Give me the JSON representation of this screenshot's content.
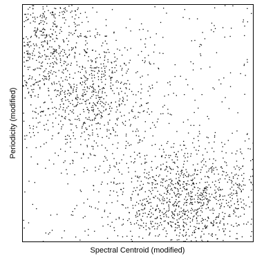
{
  "chart_data": {
    "type": "scatter",
    "title": "",
    "xlabel": "Spectral Centroid (modified)",
    "ylabel": "Periodicity (modified)",
    "xlim": [
      0,
      1
    ],
    "ylim": [
      0,
      1
    ],
    "grid": false,
    "legend": "none",
    "marker_color": "#000000",
    "axis_color": "#000000",
    "point_count": 2400,
    "clusters": [
      {
        "name": "upper-left",
        "cx": 0.06,
        "cy": 0.88,
        "sx": 0.12,
        "sy": 0.14,
        "weight": 0.22
      },
      {
        "name": "upper-middle-band",
        "cx": 0.28,
        "cy": 0.62,
        "sx": 0.14,
        "sy": 0.13,
        "weight": 0.24
      },
      {
        "name": "lower-right",
        "cx": 0.72,
        "cy": 0.18,
        "sx": 0.17,
        "sy": 0.12,
        "weight": 0.4
      },
      {
        "name": "background",
        "cx": 0.5,
        "cy": 0.5,
        "sx": 1.0,
        "sy": 1.0,
        "weight": 0.14
      }
    ]
  }
}
